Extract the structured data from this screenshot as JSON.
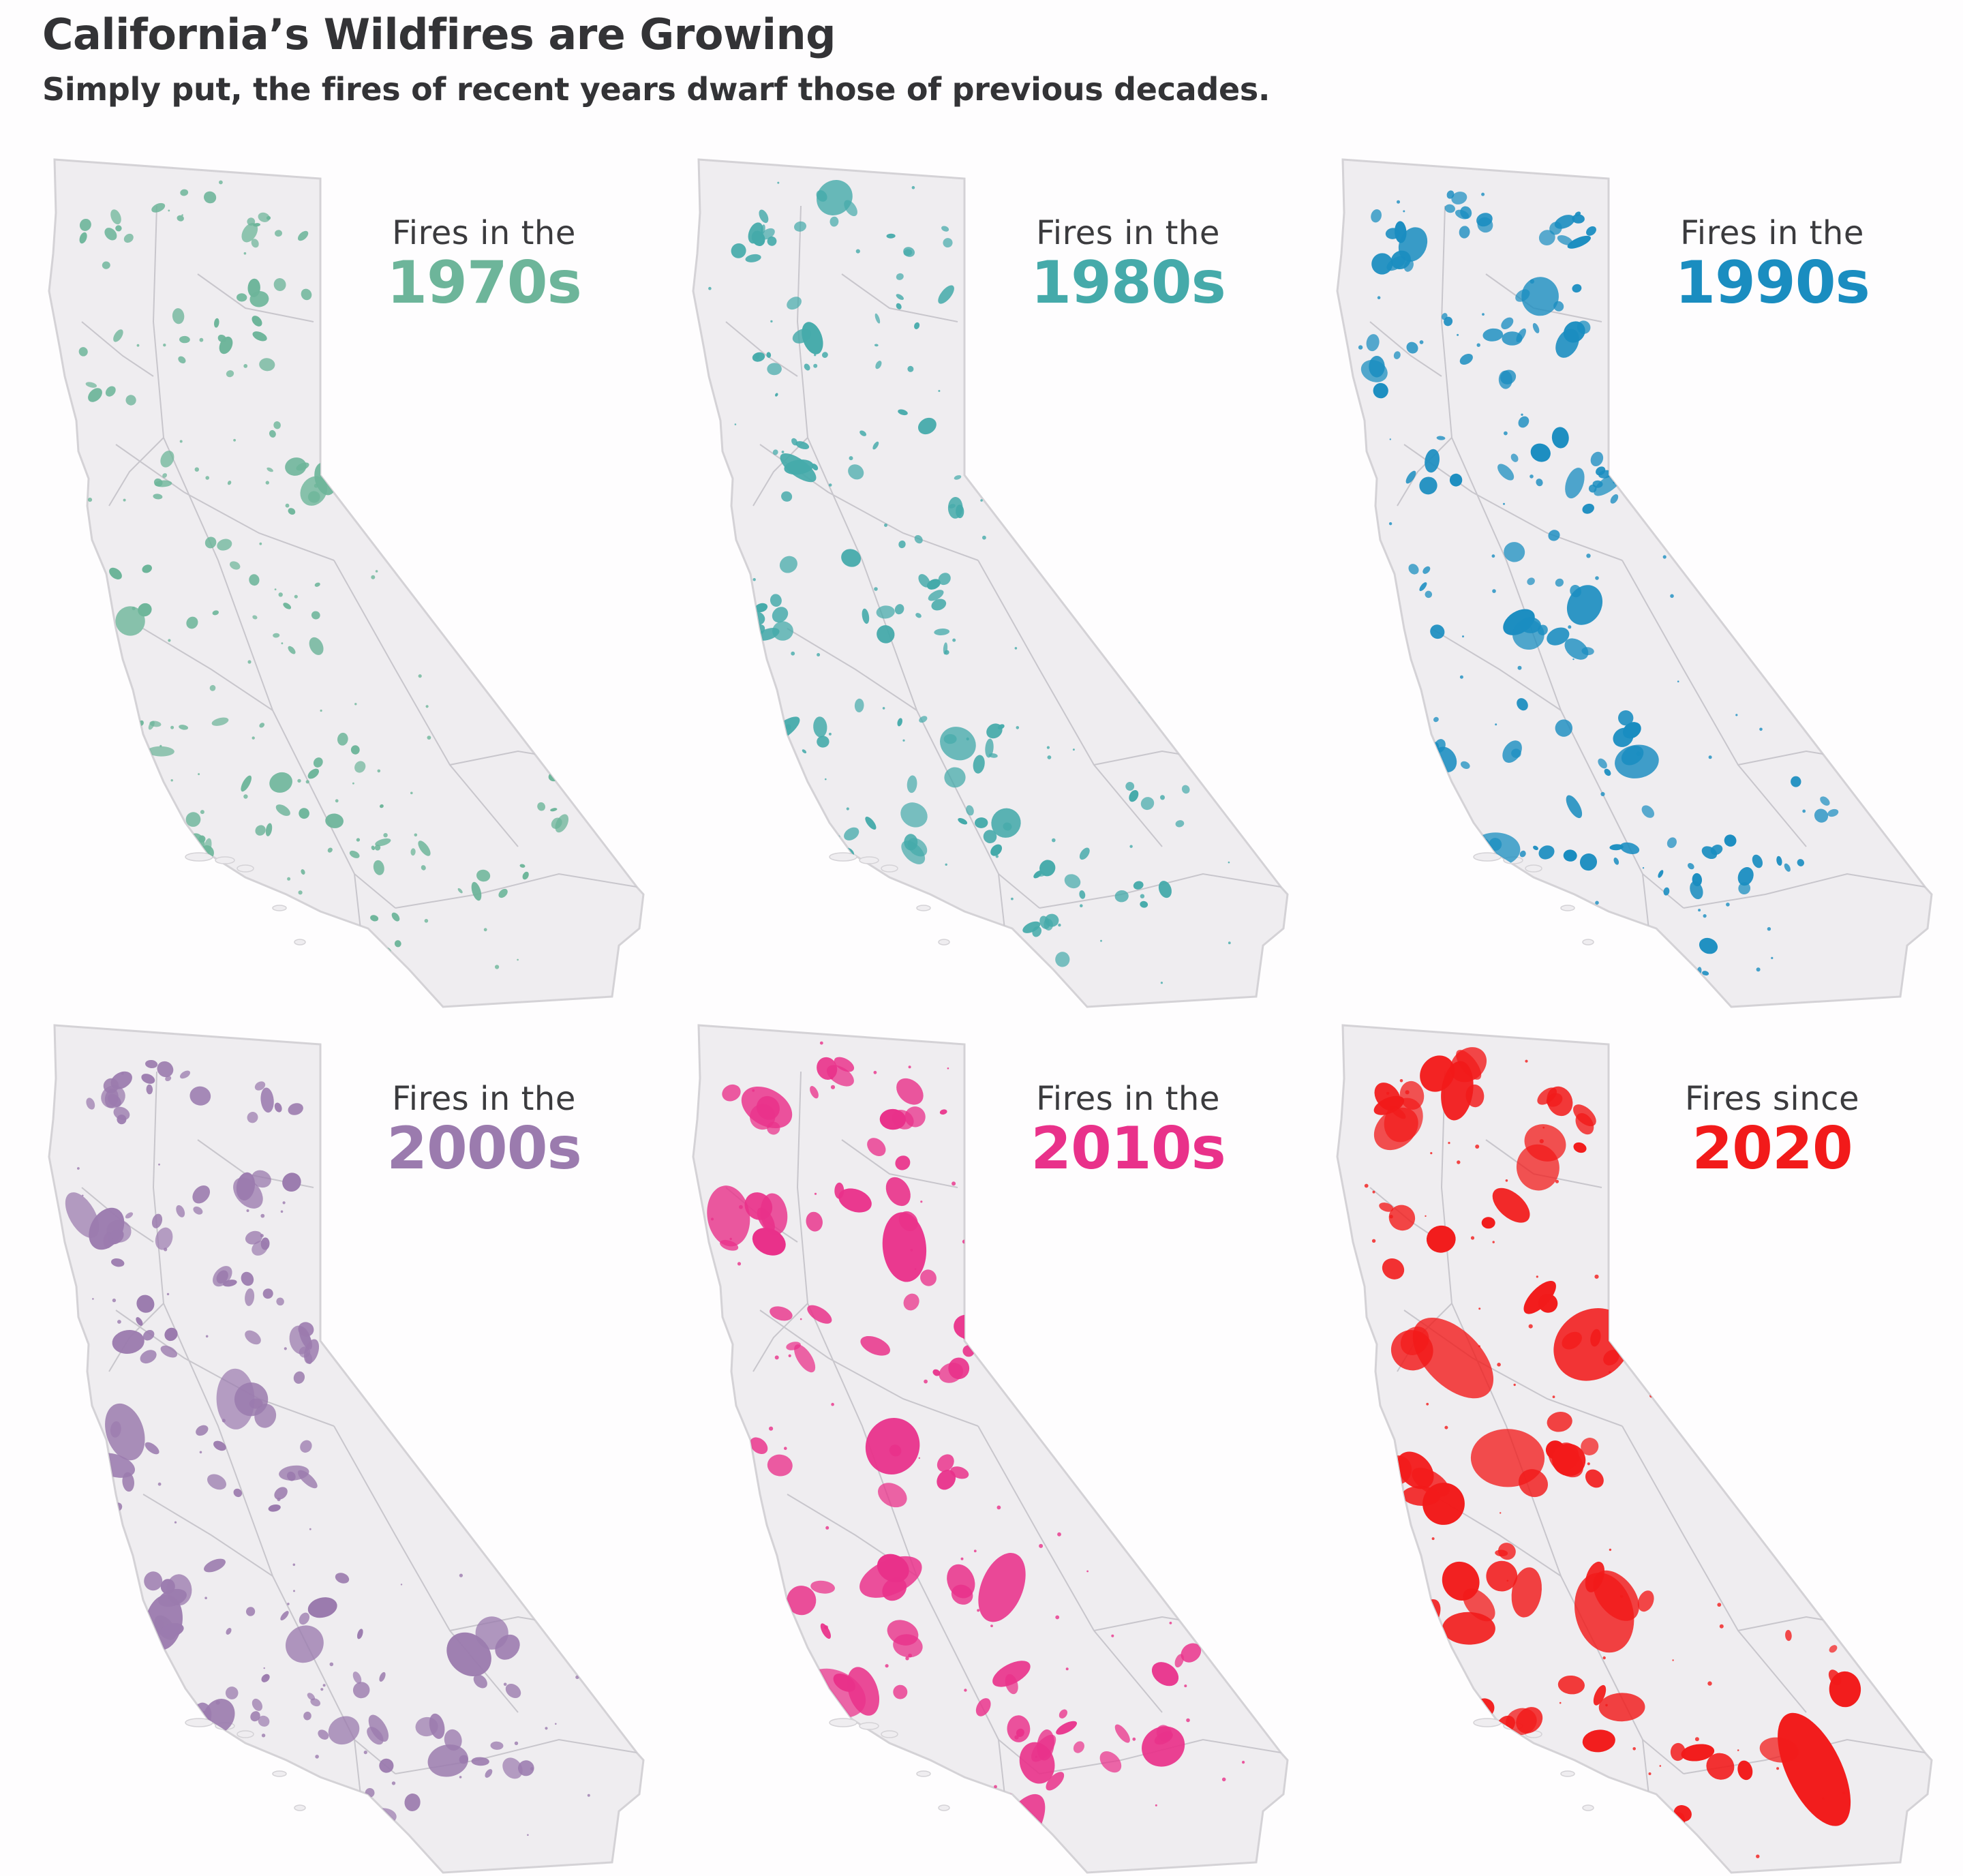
{
  "header": {
    "title": "California’s Wildfires are Growing",
    "subtitle": "Simply put, the fires of recent years dwarf those of previous decades."
  },
  "panels": [
    {
      "prefix": "Fires in the",
      "decade": "1970s",
      "color": "#6db59a",
      "intensity": 1
    },
    {
      "prefix": "Fires in the",
      "decade": "1980s",
      "color": "#45aaaa",
      "intensity": 1.2
    },
    {
      "prefix": "Fires in the",
      "decade": "1990s",
      "color": "#1a8dc0",
      "intensity": 1.4
    },
    {
      "prefix": "Fires in the",
      "decade": "2000s",
      "color": "#9b7bae",
      "intensity": 1.7
    },
    {
      "prefix": "Fires in the",
      "decade": "2010s",
      "color": "#e9318a",
      "intensity": 2.3
    },
    {
      "prefix": "Fires since",
      "decade": "2020",
      "color": "#f21a1a",
      "intensity": 3.0
    }
  ],
  "map_colors": {
    "land": "#efedf0",
    "outline": "#d4d2d6",
    "roads": "#c8c6cc"
  }
}
